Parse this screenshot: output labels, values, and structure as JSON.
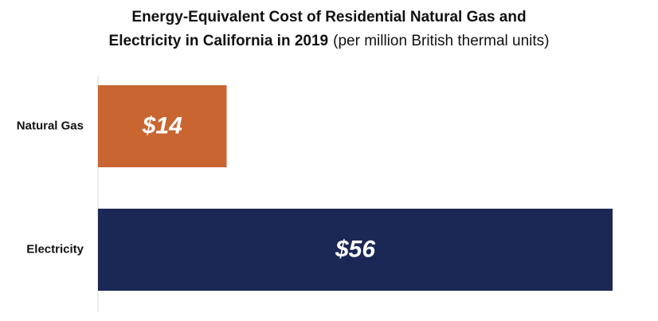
{
  "chart_data": {
    "type": "bar",
    "orientation": "horizontal",
    "title": [
      "Energy-Equivalent Cost of Residential Natural Gas and",
      "Electricity in California in 2019"
    ],
    "subtitle": "(per million British thermal units)",
    "categories": [
      "Natural Gas",
      "Electricity"
    ],
    "values": [
      14,
      56
    ],
    "value_labels": [
      "$14",
      "$56"
    ],
    "colors": [
      "#c96531",
      "#1b2855"
    ]
  }
}
